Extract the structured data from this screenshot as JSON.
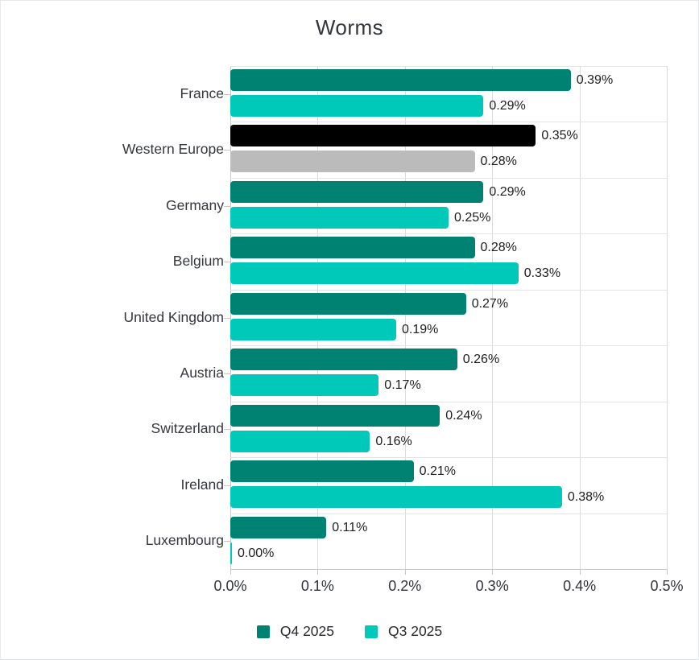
{
  "chart_data": {
    "type": "bar",
    "orientation": "horizontal",
    "title": "Worms",
    "categories": [
      "France",
      "Western Europe",
      "Germany",
      "Belgium",
      "United Kingdom",
      "Austria",
      "Switzerland",
      "Ireland",
      "Luxembourg"
    ],
    "series": [
      {
        "name": "Q4 2025",
        "color": "#008272",
        "values": [
          0.39,
          0.35,
          0.29,
          0.28,
          0.27,
          0.26,
          0.24,
          0.21,
          0.11
        ],
        "labels": [
          "0.39%",
          "0.35%",
          "0.29%",
          "0.28%",
          "0.27%",
          "0.26%",
          "0.24%",
          "0.21%",
          "0.11%"
        ]
      },
      {
        "name": "Q3 2025",
        "color": "#00C9B9",
        "values": [
          0.29,
          0.28,
          0.25,
          0.33,
          0.19,
          0.17,
          0.16,
          0.38,
          0.0
        ],
        "labels": [
          "0.29%",
          "0.28%",
          "0.25%",
          "0.33%",
          "0.19%",
          "0.17%",
          "0.16%",
          "0.38%",
          "0.00%"
        ]
      }
    ],
    "highlight": {
      "category": "Western Europe",
      "colors": [
        "#000000",
        "#BBBBBB"
      ]
    },
    "x_axis": {
      "min": 0,
      "max": 0.5,
      "ticks": [
        "0.0%",
        "0.1%",
        "0.2%",
        "0.3%",
        "0.4%",
        "0.5%"
      ]
    },
    "legend": {
      "position": "bottom",
      "items": [
        {
          "label": "Q4 2025",
          "color": "#008272"
        },
        {
          "label": "Q3 2025",
          "color": "#00C9B9"
        }
      ]
    },
    "grid": true,
    "styles": {
      "gridline_color": "#dcdcdc",
      "axis_color": "#c7c7c7",
      "title_color": "#32353b",
      "label_color": "#34373d",
      "value_color": "#1d1d1f"
    }
  }
}
